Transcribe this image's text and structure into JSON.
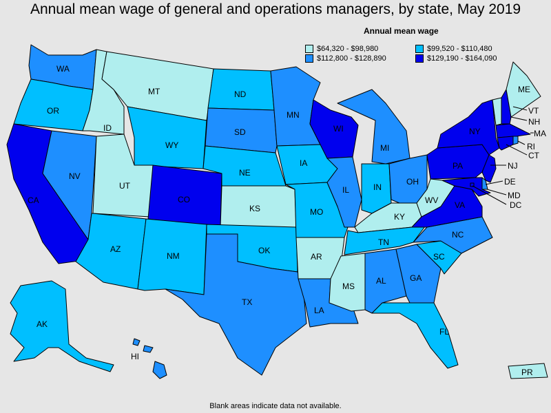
{
  "title": "Annual mean wage of general and operations managers, by state, May 2019",
  "legend": {
    "title": "Annual mean wage",
    "items": [
      {
        "label": "$64,320 - $98,980",
        "color": "#b0eeee"
      },
      {
        "label": "$99,520 - $110,480",
        "color": "#00bfff"
      },
      {
        "label": "$112,800 - $128,890",
        "color": "#1e8fff"
      },
      {
        "label": "$129,190 - $164,090",
        "color": "#0000ee"
      }
    ]
  },
  "footnote": "Blank areas indicate data not available.",
  "states": {
    "WA": 2,
    "OR": 1,
    "CA": 3,
    "NV": 2,
    "ID": 0,
    "MT": 0,
    "WY": 1,
    "UT": 0,
    "AZ": 1,
    "CO": 3,
    "NM": 1,
    "ND": 1,
    "SD": 2,
    "NE": 1,
    "KS": 0,
    "OK": 1,
    "TX": 2,
    "MN": 2,
    "IA": 1,
    "MO": 1,
    "AR": 0,
    "LA": 2,
    "WI": 3,
    "IL": 2,
    "MI": 2,
    "IN": 1,
    "OH": 2,
    "KY": 0,
    "TN": 1,
    "MS": 0,
    "AL": 2,
    "GA": 2,
    "FL": 1,
    "SC": 1,
    "NC": 2,
    "VA": 3,
    "WV": 0,
    "PA": 3,
    "NY": 3,
    "ME": 0,
    "VT": 0,
    "NH": 3,
    "MA": 3,
    "RI": 2,
    "CT": 3,
    "NJ": 3,
    "DE": 2,
    "MD": 3,
    "DC": 3,
    "AK": 1,
    "HI": 2,
    "PR": 0
  },
  "labels": {
    "WA": "WA",
    "OR": "OR",
    "CA": "CA",
    "NV": "NV",
    "ID": "ID",
    "MT": "MT",
    "WY": "WY",
    "UT": "UT",
    "AZ": "AZ",
    "CO": "CO",
    "NM": "NM",
    "ND": "ND",
    "SD": "SD",
    "NE": "NE",
    "KS": "KS",
    "OK": "OK",
    "TX": "TX",
    "MN": "MN",
    "IA": "IA",
    "MO": "MO",
    "AR": "AR",
    "LA": "LA",
    "WI": "WI",
    "IL": "IL",
    "MI": "MI",
    "IN": "IN",
    "OH": "OH",
    "KY": "KY",
    "TN": "TN",
    "MS": "MS",
    "AL": "AL",
    "GA": "GA",
    "FL": "FL",
    "SC": "SC",
    "NC": "NC",
    "VA": "VA",
    "WV": "WV",
    "PA": "PA",
    "NY": "NY",
    "ME": "ME",
    "VT": "VT",
    "NH": "NH",
    "MA": "MA",
    "RI": "RI",
    "CT": "CT",
    "NJ": "NJ",
    "DE": "DE",
    "MD": "MD",
    "DC": "DC",
    "AK": "AK",
    "HI": "HI",
    "PR": "PR"
  }
}
